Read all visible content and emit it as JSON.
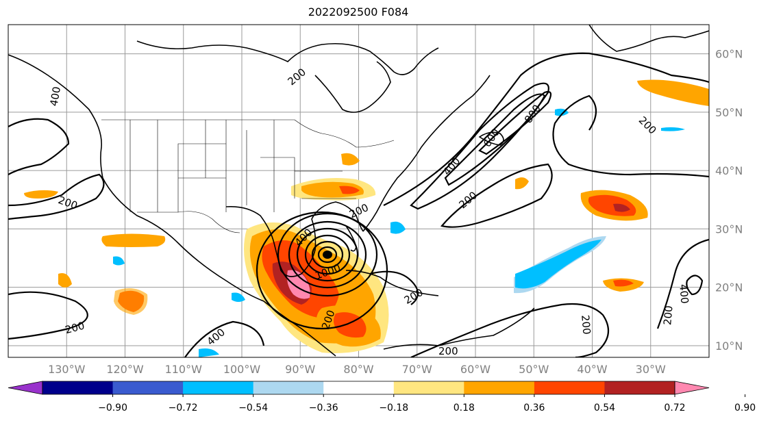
{
  "title": "2022092500 F084",
  "map": {
    "lon_range": [
      -140,
      -20
    ],
    "lat_range": [
      8,
      65
    ],
    "lon_ticks": [
      "130°W",
      "120°W",
      "110°W",
      "100°W",
      "90°W",
      "80°W",
      "70°W",
      "60°W",
      "50°W",
      "40°W",
      "30°W"
    ],
    "lat_ticks": [
      "60°N",
      "50°N",
      "40°N",
      "30°N",
      "20°N",
      "10°N"
    ],
    "gridlines": true
  },
  "colorbar": {
    "ticks": [
      "−0.90",
      "−0.72",
      "−0.54",
      "−0.36",
      "−0.18",
      "0.18",
      "0.36",
      "0.54",
      "0.72",
      "0.90"
    ],
    "colors": [
      "#9932cc",
      "#00008b",
      "#3a5bcf",
      "#00bfff",
      "#add8f0",
      "#ffffff",
      "#ffe680",
      "#ffa500",
      "#ff4500",
      "#b22222",
      "#ff88b0"
    ],
    "extend": "both"
  },
  "contour_labels": [
    "200",
    "400",
    "600",
    "800",
    "1000"
  ]
}
